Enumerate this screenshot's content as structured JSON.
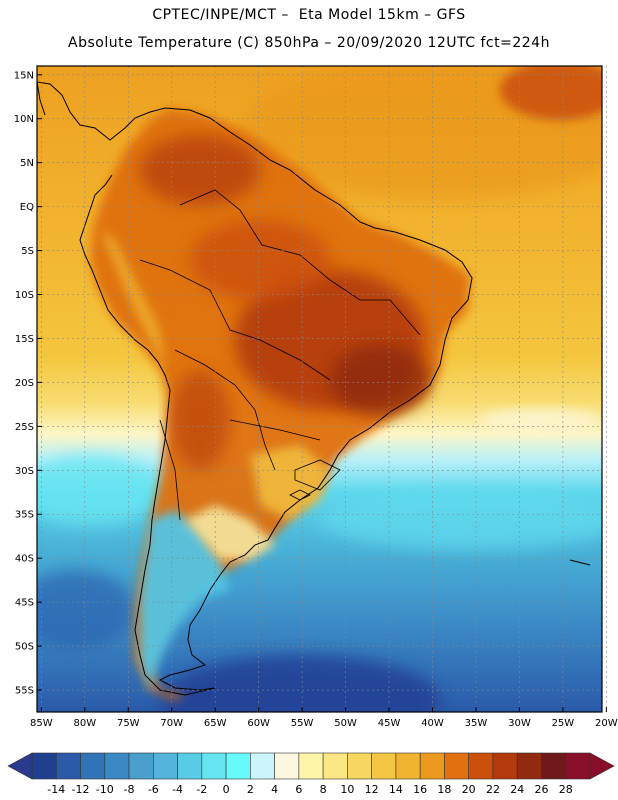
{
  "header": {
    "line1": "CPTEC/INPE/MCT –  Eta Model 15km – GFS",
    "line2": "Absolute Temperature (C) 850hPa – 20/09/2020 12UTC fct=224h"
  },
  "map": {
    "lat_labels": [
      "15N",
      "10N",
      "5N",
      "EQ",
      "5S",
      "10S",
      "15S",
      "20S",
      "25S",
      "30S",
      "35S",
      "40S",
      "45S",
      "50S",
      "55S"
    ],
    "lat_values": [
      15,
      10,
      5,
      0,
      -5,
      -10,
      -15,
      -20,
      -25,
      -30,
      -35,
      -40,
      -45,
      -50,
      -55
    ],
    "lon_labels": [
      "85W",
      "80W",
      "75W",
      "70W",
      "65W",
      "60W",
      "55W",
      "50W",
      "45W",
      "40W",
      "35W",
      "30W",
      "25W",
      "20W"
    ],
    "lon_values": [
      -85,
      -80,
      -75,
      -70,
      -65,
      -60,
      -55,
      -50,
      -45,
      -40,
      -35,
      -30,
      -25,
      -20
    ],
    "lon_range": [
      -85.5,
      -20.5
    ],
    "lat_range": [
      -57.5,
      16
    ]
  },
  "colorbar": {
    "labels": [
      "-14",
      "-12",
      "-10",
      "-8",
      "-6",
      "-4",
      "-2",
      "0",
      "2",
      "4",
      "6",
      "8",
      "10",
      "12",
      "14",
      "16",
      "18",
      "20",
      "22",
      "24",
      "26",
      "28"
    ],
    "colors": [
      "#1f3f8f",
      "#2a5aa8",
      "#2f74b8",
      "#3a88c4",
      "#4aa0cc",
      "#55b4dc",
      "#58cce4",
      "#66e4f0",
      "#66fafa",
      "#ccf4fb",
      "#fdf7df",
      "#fdf6a8",
      "#fbe784",
      "#f6d860",
      "#f4c644",
      "#f0b430",
      "#eb9a1e",
      "#e07010",
      "#cc500c",
      "#b33a0a",
      "#922a10",
      "#6e1a1a",
      "#88102a"
    ],
    "low_color": "#2a3b8e",
    "high_color": "#880e2a"
  }
}
